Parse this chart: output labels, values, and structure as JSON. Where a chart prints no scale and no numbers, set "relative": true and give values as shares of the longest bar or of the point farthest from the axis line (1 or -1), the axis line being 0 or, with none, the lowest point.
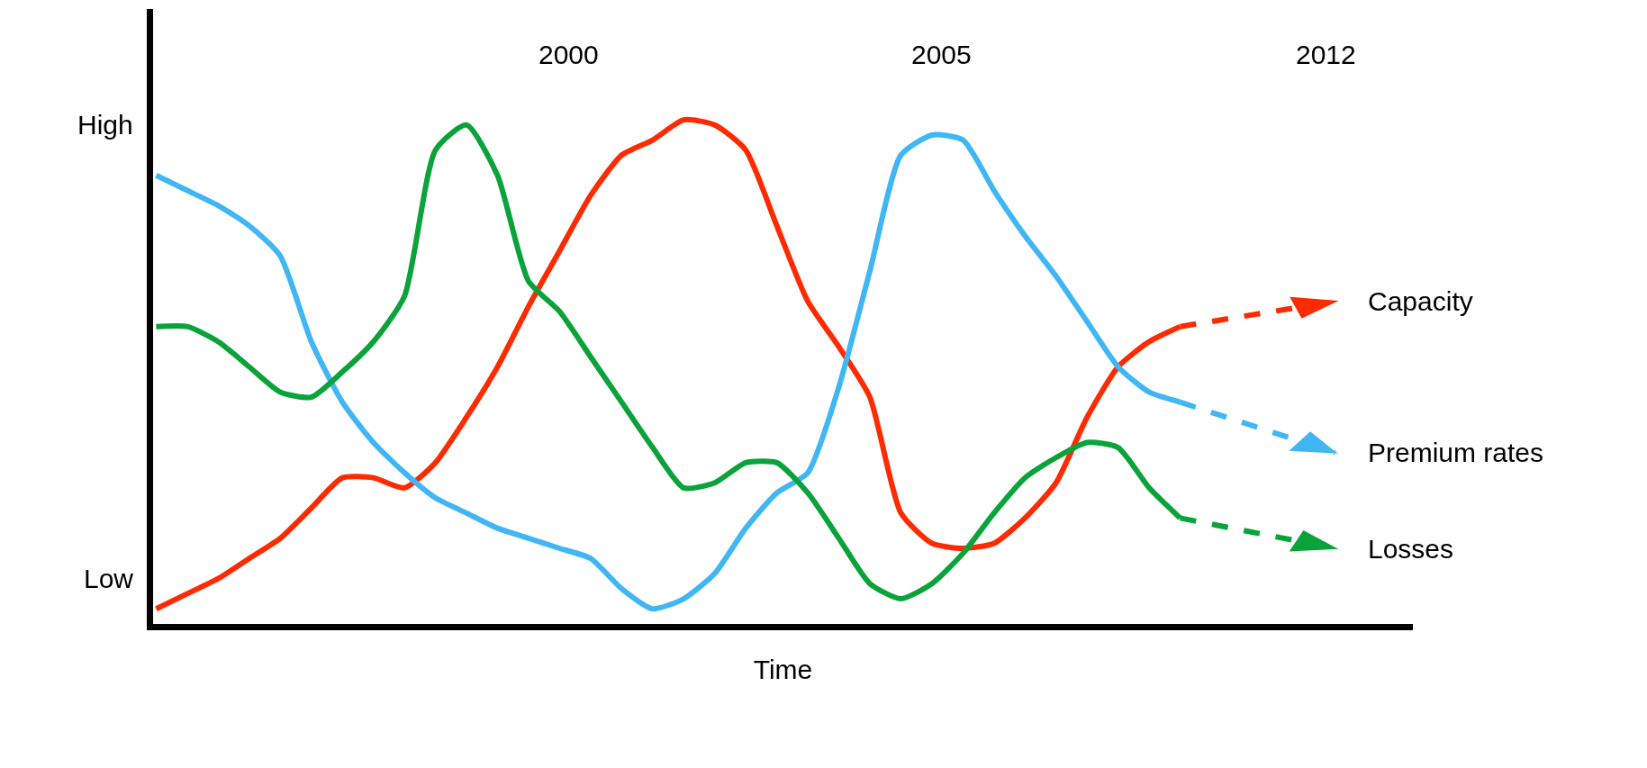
{
  "chart_data": {
    "type": "line",
    "relative": true,
    "xlabel": "Time",
    "legend": "right",
    "annotations": [
      "High",
      "Low",
      "2000",
      "2005",
      "2012"
    ],
    "categories": [
      null,
      null,
      null,
      null,
      null,
      null,
      null,
      null,
      null,
      null,
      null,
      null,
      null,
      null,
      null,
      null,
      null,
      null,
      null,
      null,
      null,
      null,
      null,
      null,
      null,
      null,
      null,
      null,
      null,
      null,
      null,
      null,
      null,
      null,
      null,
      null,
      null,
      null,
      null
    ],
    "series": [
      {
        "name": "Capacity",
        "color": "#ff2a00",
        "line_style": "solid",
        "values": [
          0.03,
          0.06,
          0.09,
          0.13,
          0.17,
          0.23,
          0.29,
          0.29,
          0.27,
          0.32,
          0.41,
          0.51,
          0.63,
          0.74,
          0.85,
          0.93,
          0.96,
          1.0,
          0.99,
          0.94,
          0.79,
          0.64,
          0.55,
          0.45,
          0.22,
          0.16,
          0.15,
          0.16,
          0.21,
          0.28,
          0.41,
          0.51,
          0.56,
          0.59,
          null,
          null,
          null,
          null,
          null
        ]
      },
      {
        "name": "Premium rates",
        "color": "#41b6f5",
        "line_style": "solid",
        "values": [
          0.89,
          0.86,
          0.83,
          0.79,
          0.73,
          0.56,
          0.44,
          0.36,
          0.3,
          0.25,
          0.22,
          0.19,
          0.17,
          0.15,
          0.13,
          0.07,
          0.03,
          0.05,
          0.1,
          0.19,
          0.26,
          0.3,
          0.47,
          0.7,
          0.93,
          0.97,
          0.96,
          0.86,
          0.77,
          0.69,
          0.6,
          0.51,
          0.46,
          0.44,
          null,
          null,
          null,
          null,
          null
        ]
      },
      {
        "name": "Losses",
        "color": "#0aa33a",
        "line_style": "solid",
        "values": [
          0.59,
          0.59,
          0.56,
          0.51,
          0.46,
          0.45,
          0.5,
          0.56,
          0.65,
          0.94,
          0.99,
          0.89,
          0.68,
          0.62,
          0.53,
          0.44,
          0.35,
          0.27,
          0.28,
          0.32,
          0.32,
          0.26,
          0.17,
          0.08,
          0.05,
          0.08,
          0.14,
          0.22,
          0.29,
          0.33,
          0.36,
          0.35,
          0.27,
          0.21,
          null,
          null,
          null,
          null,
          null
        ]
      }
    ]
  }
}
